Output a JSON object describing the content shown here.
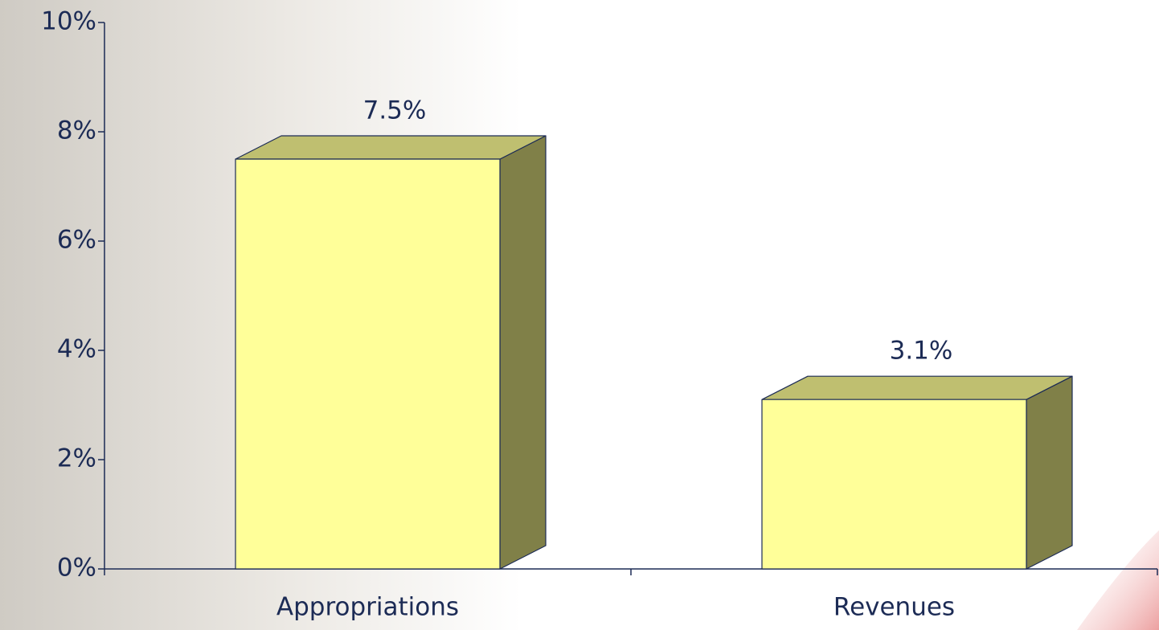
{
  "chart_data": {
    "type": "bar3d",
    "categories": [
      "Appropriations",
      "Revenues"
    ],
    "values": [
      7.5,
      3.1
    ],
    "value_labels": [
      "7.5%",
      "3.1%"
    ],
    "color": "#ffff99",
    "ylim": [
      0,
      10
    ],
    "yticks": [
      {
        "value": 0,
        "label": "0%"
      },
      {
        "value": 2,
        "label": "2%"
      },
      {
        "value": 4,
        "label": "4%"
      },
      {
        "value": 6,
        "label": "6%"
      },
      {
        "value": 8,
        "label": "8%"
      },
      {
        "value": 10,
        "label": "10%"
      }
    ],
    "grid": false
  }
}
